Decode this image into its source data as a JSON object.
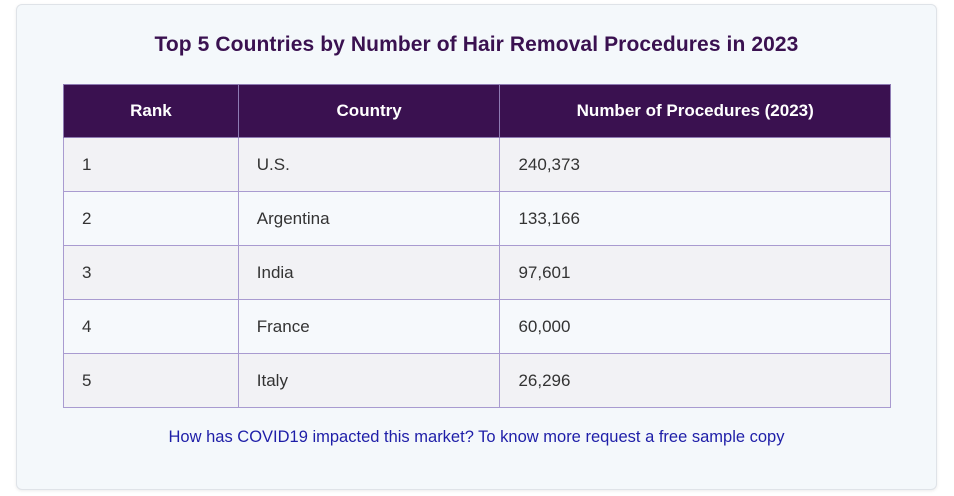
{
  "title": "Top 5 Countries by Number of Hair Removal Procedures in 2023",
  "table": {
    "headers": [
      "Rank",
      "Country",
      "Number of Procedures (2023)"
    ],
    "rows": [
      [
        "1",
        "U.S.",
        "240,373"
      ],
      [
        "2",
        "Argentina",
        "133,166"
      ],
      [
        "3",
        "India",
        "97,601"
      ],
      [
        "4",
        "France",
        "60,000"
      ],
      [
        "5",
        "Italy",
        "26,296"
      ]
    ]
  },
  "cta_link": "How has COVID19 impacted this market? To know more request a free sample copy",
  "colors": {
    "header_bg": "#3a1150",
    "title": "#3a1150",
    "link": "#1e1ea8",
    "border": "#a99bd0"
  }
}
